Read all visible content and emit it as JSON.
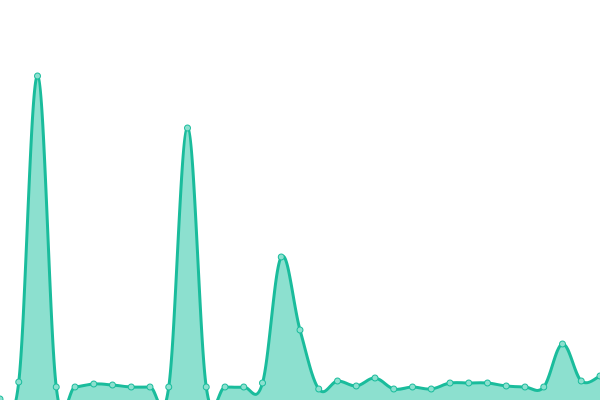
{
  "chart_data": {
    "type": "area",
    "title": "",
    "xlabel": "",
    "ylabel": "",
    "x": [
      0,
      1,
      2,
      3,
      4,
      5,
      6,
      7,
      8,
      9,
      10,
      11,
      12,
      13,
      14,
      15,
      16,
      17,
      18,
      19,
      20,
      21,
      22,
      23,
      24,
      25,
      26,
      27,
      28,
      29,
      30,
      31,
      32
    ],
    "values": [
      1,
      18,
      324,
      13,
      13,
      16,
      15,
      13,
      13,
      13,
      272,
      13,
      13,
      13,
      17,
      143,
      70,
      11,
      19,
      14,
      22,
      11,
      13,
      11,
      17,
      17,
      17,
      14,
      13,
      13,
      56,
      19,
      24
    ],
    "ylim": [
      0,
      400
    ],
    "grid": false,
    "axes_visible": false,
    "smooth": true,
    "markers": true,
    "colors": {
      "line": "#1abc9c",
      "fill": "#8ce0cf",
      "marker_fill": "#8ce0cf",
      "marker_stroke": "#1abc9c"
    }
  }
}
